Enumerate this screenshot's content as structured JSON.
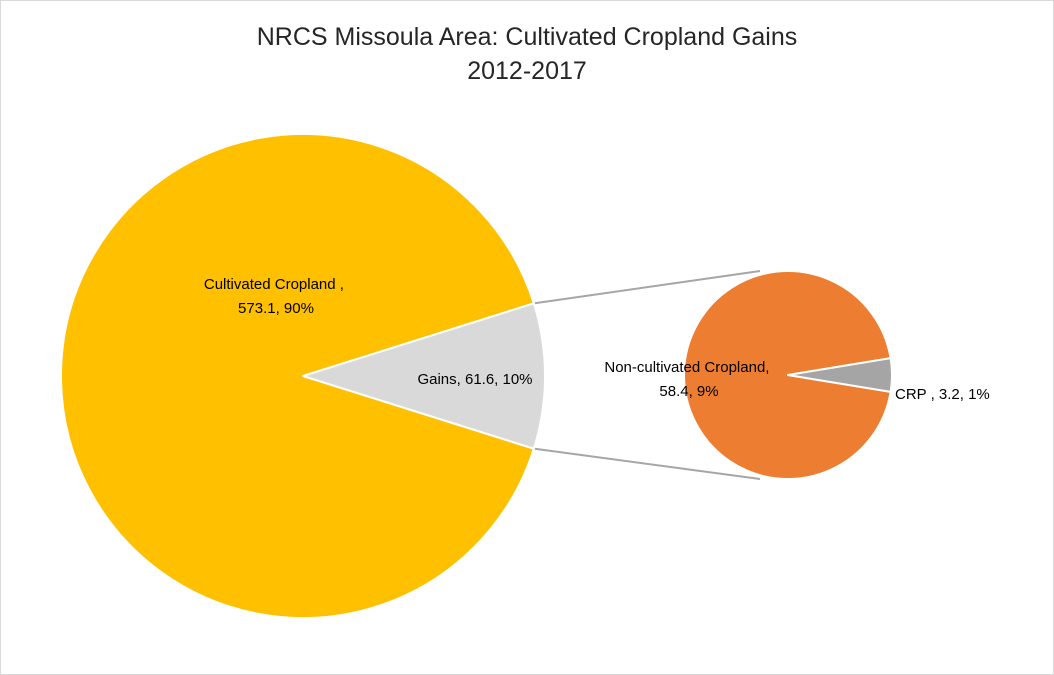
{
  "chart_data": {
    "type": "bar-of-pie",
    "title_lines": [
      "NRCS Missoula Area: Cultivated Cropland Gains",
      "2012-2017"
    ],
    "main_pie": {
      "slices": [
        {
          "name": "Cultivated Cropland",
          "value": 573.1,
          "percent": "90%",
          "label_lines": [
            "Cultivated Cropland ,",
            "573.1, 90%"
          ],
          "color": "#ffc000"
        },
        {
          "name": "Gains",
          "value": 61.6,
          "percent": "10%",
          "label_lines": [
            "Gains, 61.6, 10%"
          ],
          "color": "#d9d9d9"
        }
      ]
    },
    "secondary_pie": {
      "slices": [
        {
          "name": "Non-cultivated Cropland",
          "value": 58.4,
          "percent": "9%",
          "label_lines": [
            "Non-cultivated Cropland,",
            "58.4, 9%"
          ],
          "color": "#ed7d31"
        },
        {
          "name": "CRP",
          "value": 3.2,
          "percent": "1%",
          "label_lines": [
            "CRP , 3.2, 1%"
          ],
          "color": "#a5a5a5"
        }
      ]
    },
    "connector_color": "#a6a6a6",
    "legend": "none"
  }
}
